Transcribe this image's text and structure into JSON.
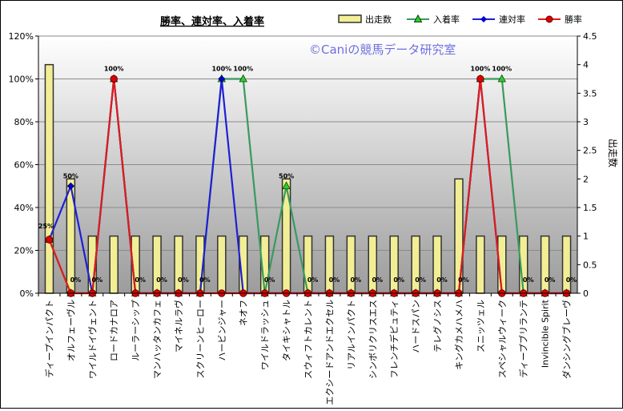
{
  "chart_data": {
    "type": "bar+line",
    "title": "勝率、連対率、入着率",
    "watermark": "©Caniの競馬データ研究室",
    "ylabel": "",
    "y2label": "出走数",
    "ylim": [
      0,
      120
    ],
    "y_ticks": [
      "0%",
      "20%",
      "40%",
      "60%",
      "80%",
      "100%",
      "120%"
    ],
    "y2lim": [
      0,
      4.5
    ],
    "y2_ticks": [
      "0",
      "0.5",
      "1",
      "1.5",
      "2",
      "2.5",
      "3",
      "3.5",
      "4",
      "4.5"
    ],
    "legend_position": "top-right",
    "categories": [
      "ディープインパクト",
      "オルフェーヴル",
      "ワイルドイヴェント",
      "ロードカナロア",
      "ルーラーシップ",
      "マンハッタンカフェ",
      "マイネルラヴ",
      "スクリーンヒーロー",
      "ハービンジャー",
      "ネオフ",
      "ワイルドラッシュ",
      "タイキシャトル",
      "スウィフトカレント",
      "エクシードアンドエクセル",
      "リアルインパクト",
      "シンボリクリスエス",
      "フレンチデピュティ",
      "ハードスパン",
      "テレグノシス",
      "キングカメハメハ",
      "スニッツェル",
      "スペシャルウィーク",
      "ディープブリランテ",
      "Invincible Spirit",
      "ダンシングブレーヴ"
    ],
    "starts": [
      4,
      2,
      1,
      1,
      1,
      1,
      1,
      1,
      1,
      1,
      1,
      2,
      1,
      1,
      1,
      1,
      1,
      1,
      1,
      2,
      1,
      1,
      1,
      1,
      1
    ],
    "series": [
      {
        "name": "出走数",
        "kind": "bar",
        "color": "#f2ee96",
        "edge": "#333333"
      },
      {
        "name": "入着率",
        "kind": "line",
        "color": "#3a9960",
        "marker": "triangle",
        "marker_color": "#33cc33",
        "values": [
          25,
          0,
          0,
          100,
          0,
          0,
          0,
          0,
          100,
          100,
          0,
          50,
          0,
          0,
          0,
          0,
          0,
          0,
          0,
          0,
          100,
          100,
          0,
          0,
          0
        ]
      },
      {
        "name": "連対率",
        "kind": "line",
        "color": "#1f1fd6",
        "marker": "diamond",
        "marker_color": "#0000cc",
        "values": [
          25,
          50,
          0,
          100,
          0,
          0,
          0,
          0,
          100,
          0,
          0,
          0,
          0,
          0,
          0,
          0,
          0,
          0,
          0,
          0,
          100,
          0,
          0,
          0,
          0
        ]
      },
      {
        "name": "勝率",
        "kind": "line",
        "color": "#e01a1a",
        "marker": "circle",
        "marker_color": "#dd0000",
        "values": [
          25,
          0,
          0,
          100,
          0,
          0,
          0,
          0,
          0,
          0,
          0,
          0,
          0,
          0,
          0,
          0,
          0,
          0,
          0,
          0,
          100,
          0,
          0,
          0,
          0
        ]
      }
    ],
    "data_labels": [
      "25%",
      "0%",
      "0%",
      "100%",
      "0%",
      "0%",
      "0%",
      "0%",
      "100%",
      "100%",
      "0%",
      "50%",
      "0%",
      "0%",
      "0%",
      "0%",
      "0%",
      "0%",
      "0%",
      "0%",
      "100%",
      "100%",
      "0%",
      "0%",
      "0%"
    ],
    "extra_labels": [
      {
        "index": 1,
        "text": "50%"
      }
    ],
    "grid": true
  }
}
